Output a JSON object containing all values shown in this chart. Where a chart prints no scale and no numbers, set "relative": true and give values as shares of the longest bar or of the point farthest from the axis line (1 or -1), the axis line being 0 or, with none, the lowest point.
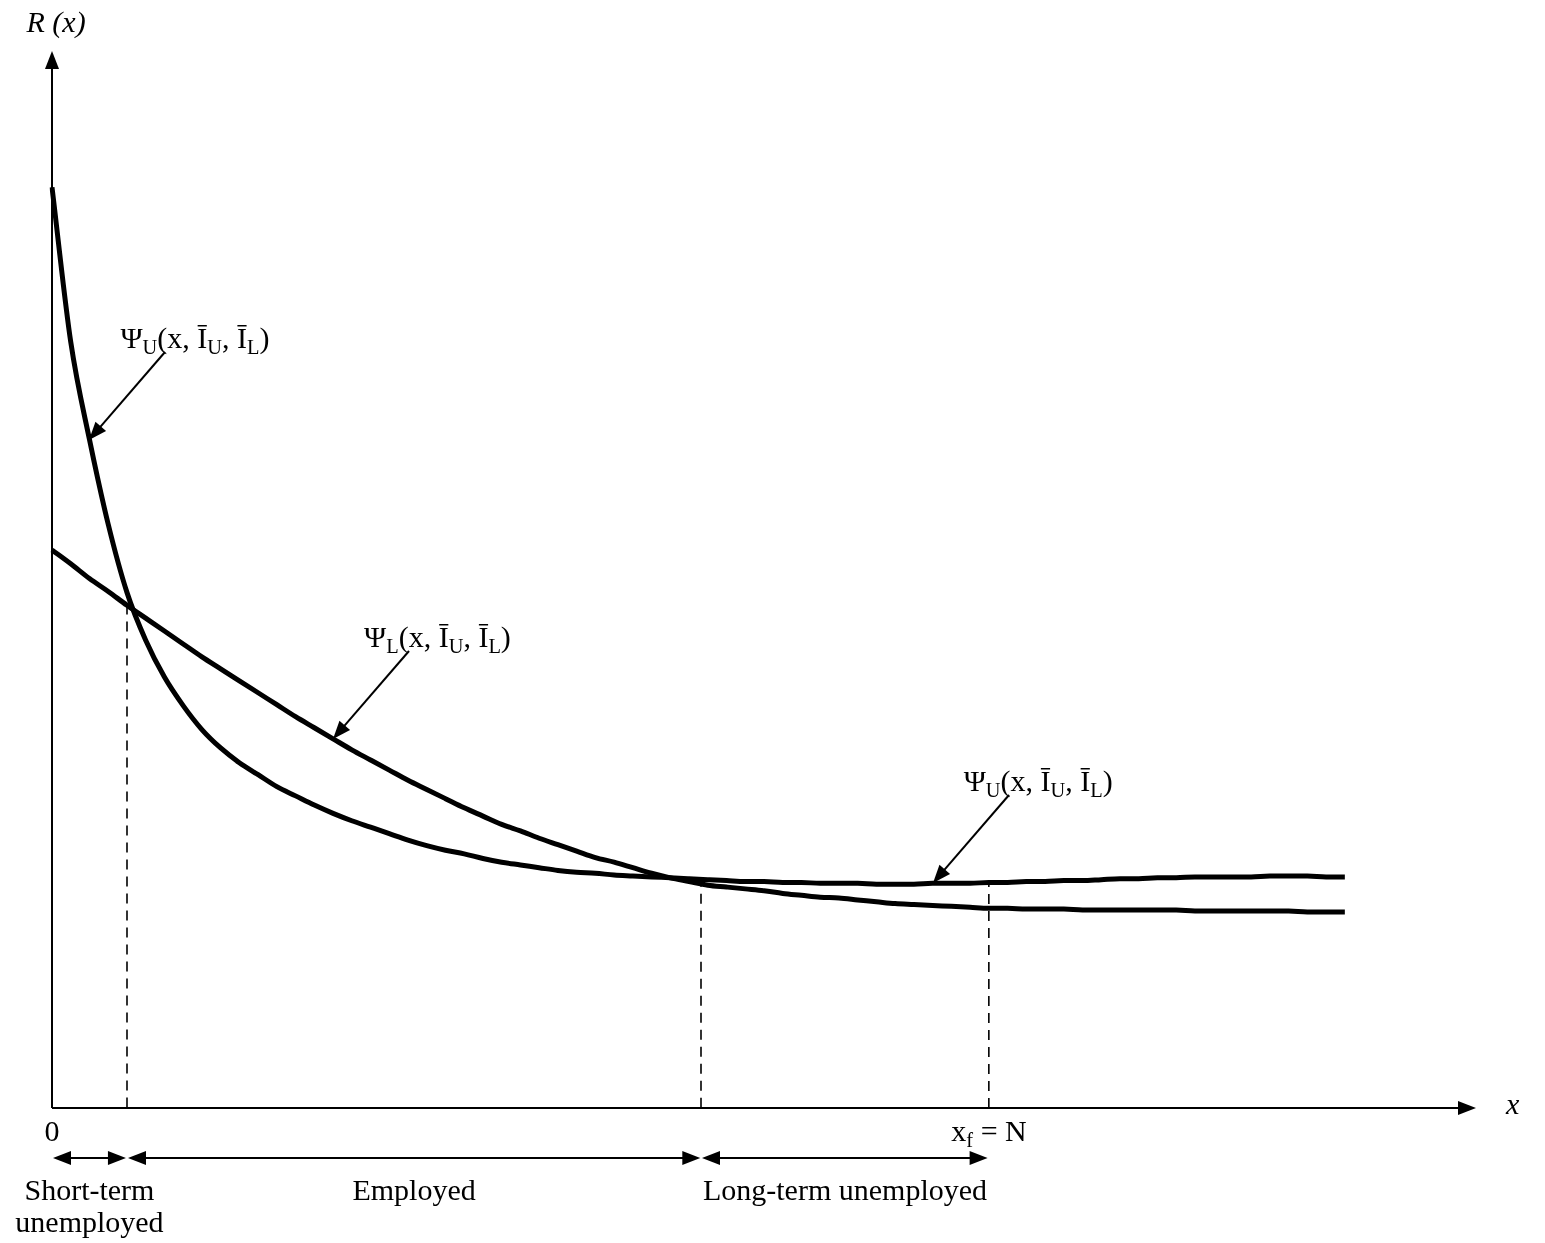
{
  "chart_data": {
    "type": "line",
    "relative": true,
    "xlabel": "x",
    "ylabel": "R (x)",
    "marker": "none",
    "categories": [
      "0",
      null,
      null,
      null,
      null,
      null,
      null,
      null,
      null,
      null,
      null,
      null,
      null,
      null,
      null,
      null,
      null,
      null,
      null,
      null,
      null,
      null,
      null,
      null,
      null,
      null,
      null,
      null,
      null,
      null,
      null,
      null,
      null,
      null,
      null,
      null,
      null,
      null,
      null,
      null,
      null,
      null,
      null,
      null,
      null,
      null,
      null,
      null,
      null,
      null,
      "x$_{f}$ = N",
      null,
      null,
      null,
      null,
      null,
      null,
      null,
      null,
      null,
      null,
      null,
      null,
      null,
      null,
      null,
      null,
      null,
      null,
      null,
      null,
      null,
      null,
      null,
      null,
      null,
      null
    ],
    "series": [
      {
        "name": "Ψ$_{U}$(x, Ī$_{U}$, Ī$_{L}$)",
        "color": "#000000",
        "values": [
          1,
          0.832,
          0.726,
          0.634,
          0.56,
          0.508,
          0.468,
          0.437,
          0.411,
          0.391,
          0.375,
          0.362,
          0.349,
          0.339,
          0.329,
          0.32,
          0.312,
          0.305,
          0.298,
          0.291,
          0.285,
          0.28,
          0.276,
          0.271,
          0.267,
          0.264,
          0.261,
          0.258,
          0.256,
          0.255,
          0.253,
          0.252,
          0.251,
          0.25,
          0.249,
          0.248,
          0.247,
          0.246,
          0.246,
          0.245,
          0.245,
          0.244,
          0.244,
          0.244,
          0.243,
          0.243,
          0.243,
          0.244,
          0.244,
          0.244,
          0.245,
          0.245,
          0.246,
          0.246,
          0.247,
          0.247,
          0.248,
          0.249,
          0.249,
          0.25,
          0.25,
          0.251,
          0.251,
          0.251,
          0.251,
          0.252,
          0.252,
          0.252,
          0.251,
          0.251,
          null,
          null,
          null,
          null,
          null,
          null,
          null
        ]
      },
      {
        "name": "Ψ$_{L}$(x, Ī$_{U}$, Ī$_{L}$)",
        "color": "#000000",
        "values": [
          0.606,
          0.591,
          0.575,
          0.561,
          0.546,
          0.532,
          0.518,
          0.504,
          0.49,
          0.477,
          0.464,
          0.451,
          0.438,
          0.425,
          0.413,
          0.401,
          0.389,
          0.378,
          0.367,
          0.356,
          0.346,
          0.336,
          0.326,
          0.317,
          0.308,
          0.301,
          0.293,
          0.286,
          0.279,
          0.272,
          0.267,
          0.261,
          0.255,
          0.25,
          0.246,
          0.242,
          0.24,
          0.238,
          0.236,
          0.233,
          0.231,
          0.229,
          0.228,
          0.226,
          0.224,
          0.222,
          0.221,
          0.22,
          0.219,
          0.218,
          0.217,
          0.217,
          0.216,
          0.216,
          0.216,
          0.215,
          0.215,
          0.215,
          0.215,
          0.215,
          0.215,
          0.214,
          0.214,
          0.214,
          0.214,
          0.214,
          0.214,
          0.213,
          0.213,
          0.213,
          null,
          null,
          null,
          null,
          null,
          null,
          null
        ]
      }
    ],
    "ref_lines": [
      {
        "axis": "x",
        "value": "x$_{f}$ = N",
        "color": "#000000",
        "line_style": "dashed"
      }
    ],
    "annotations": [
      "Short-term unemployed",
      "Employed",
      "Long-term unemployed"
    ]
  }
}
